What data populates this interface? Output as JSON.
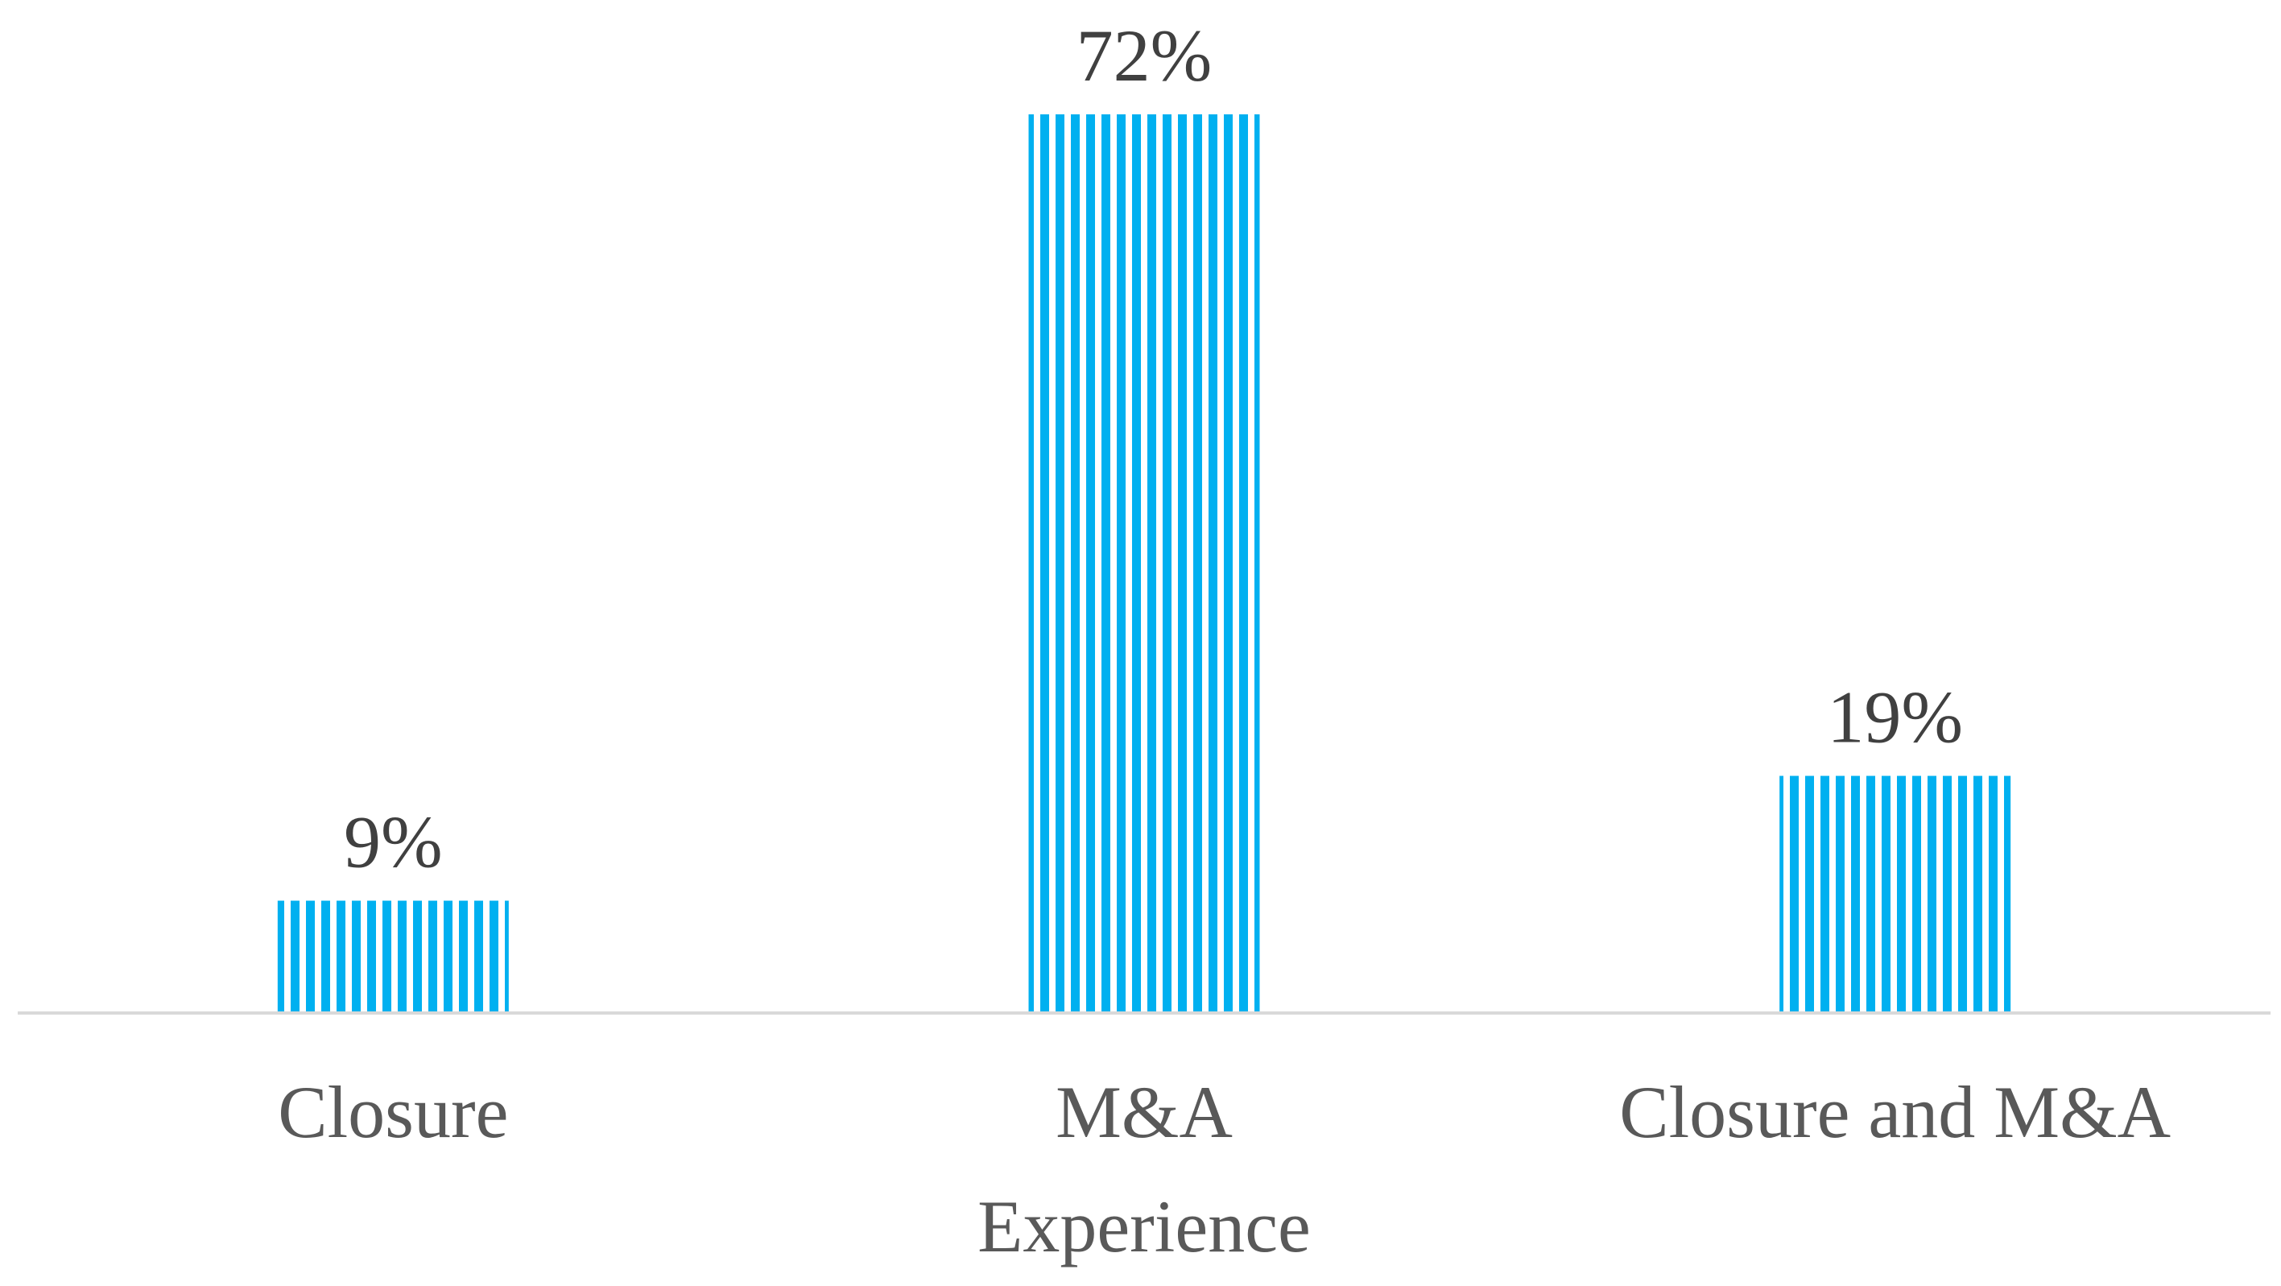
{
  "chart_data": {
    "type": "bar",
    "categories": [
      "Closure",
      "M&A\nExperience",
      "Closure and M&A"
    ],
    "values": [
      9,
      72,
      19
    ],
    "value_labels": [
      "9%",
      "72%",
      "19%"
    ],
    "color": "#00b0f0",
    "ylim": [
      0,
      80
    ]
  }
}
